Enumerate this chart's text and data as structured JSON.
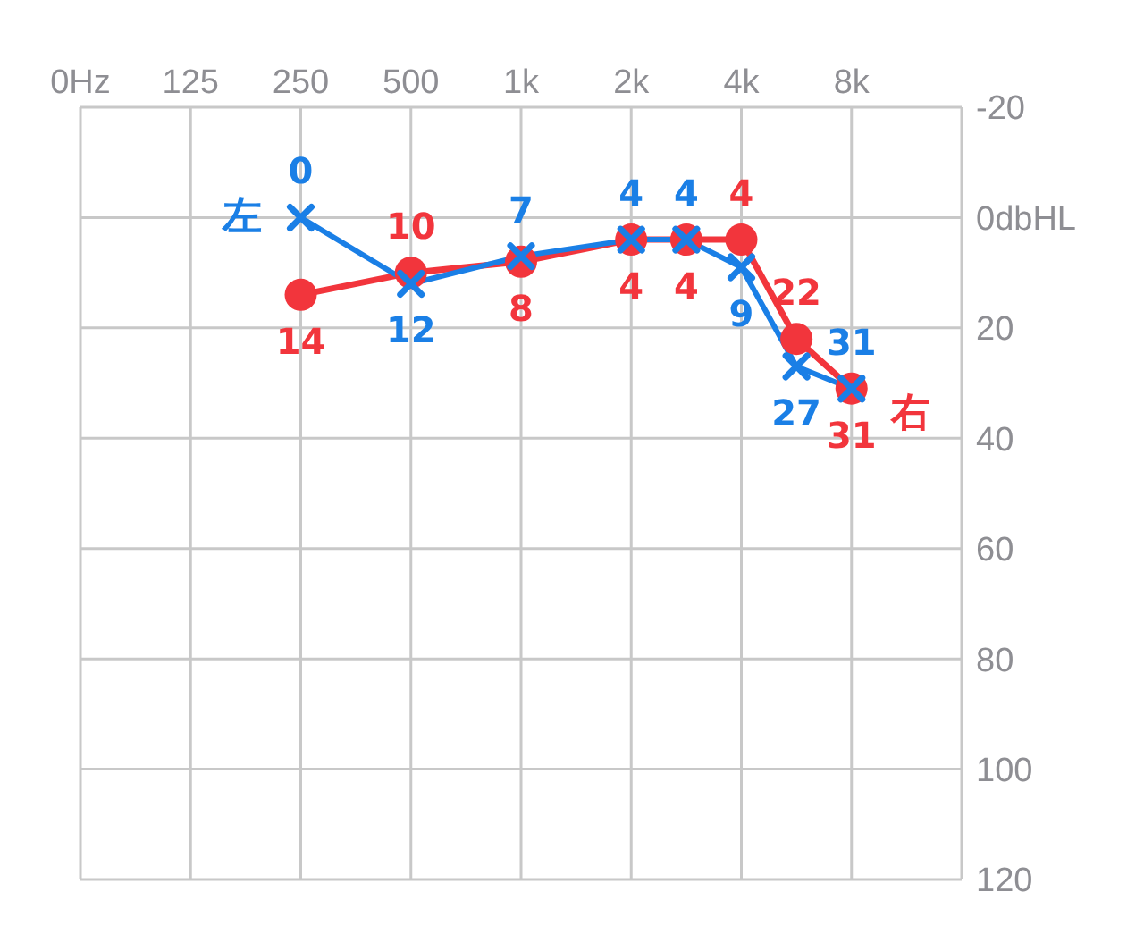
{
  "chart_data": {
    "type": "line",
    "categories": [
      "0Hz",
      null,
      "125",
      null,
      "250",
      null,
      "500",
      null,
      "1k",
      null,
      "2k",
      null,
      "4k",
      null,
      "8k",
      null,
      null
    ],
    "series": [
      {
        "name": "左",
        "color": "#1a7fe6",
        "marker": "cross",
        "values": [
          null,
          null,
          null,
          null,
          0,
          null,
          12,
          null,
          7,
          null,
          4,
          4,
          9,
          27,
          31,
          null,
          null
        ]
      },
      {
        "name": "右",
        "color": "#f2353c",
        "marker": "circle",
        "values": [
          null,
          null,
          null,
          null,
          14,
          null,
          10,
          null,
          8,
          null,
          4,
          4,
          4,
          22,
          31,
          null,
          null
        ]
      }
    ],
    "ylim": [
      120,
      -20
    ],
    "yticks": [
      -20,
      {
        "value": 0,
        "label": "0dbHL"
      },
      20,
      40,
      60,
      80,
      100,
      120
    ],
    "grid": true,
    "data_labels": true,
    "legend": false
  }
}
